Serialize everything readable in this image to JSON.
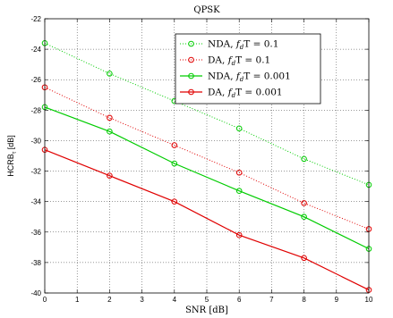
{
  "chart_data": {
    "type": "line",
    "title": "QPSK",
    "xlabel": "SNR [dB]",
    "ylabel": "HCRB",
    "ylabel_sub": "τ",
    "ylabel_unit": " [dB]",
    "xlim": [
      0,
      10
    ],
    "ylim": [
      -40,
      -22
    ],
    "xticks": [
      0,
      1,
      2,
      3,
      4,
      5,
      6,
      7,
      8,
      9,
      10
    ],
    "yticks": [
      -40,
      -38,
      -36,
      -34,
      -32,
      -30,
      -28,
      -26,
      -24,
      -22
    ],
    "grid": true,
    "legend_position": "top-right",
    "series": [
      {
        "name_main": "NDA, ",
        "name_var": "f",
        "name_sub": "d",
        "name_rest": "T = 0.1",
        "color": "#00cc00",
        "line_style": "dotted",
        "marker": "circle",
        "x": [
          0,
          2,
          4,
          6,
          8,
          10
        ],
        "y": [
          -23.6,
          -25.6,
          -27.4,
          -29.2,
          -31.2,
          -32.9
        ]
      },
      {
        "name_main": "DA, ",
        "name_var": "f",
        "name_sub": "d",
        "name_rest": "T = 0.1",
        "color": "#e00000",
        "line_style": "dotted",
        "marker": "circle",
        "x": [
          0,
          2,
          4,
          6,
          8,
          10
        ],
        "y": [
          -26.5,
          -28.5,
          -30.3,
          -32.1,
          -34.1,
          -35.8
        ]
      },
      {
        "name_main": "NDA, ",
        "name_var": "f",
        "name_sub": "d",
        "name_rest": "T = 0.001",
        "color": "#00cc00",
        "line_style": "solid",
        "marker": "circle",
        "x": [
          0,
          2,
          4,
          6,
          8,
          10
        ],
        "y": [
          -27.8,
          -29.4,
          -31.5,
          -33.3,
          -35.0,
          -37.1
        ]
      },
      {
        "name_main": "DA, ",
        "name_var": "f",
        "name_sub": "d",
        "name_rest": "T = 0.001",
        "color": "#e00000",
        "line_style": "solid",
        "marker": "circle",
        "x": [
          0,
          2,
          4,
          6,
          8,
          10
        ],
        "y": [
          -30.6,
          -32.3,
          -34.0,
          -36.2,
          -37.7,
          -39.8
        ]
      }
    ]
  }
}
